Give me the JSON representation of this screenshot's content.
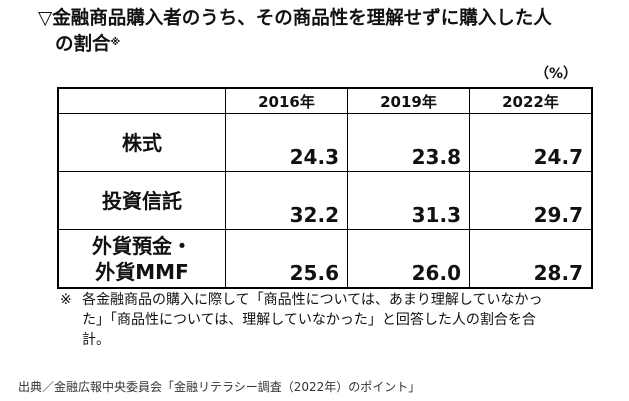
{
  "title": {
    "line1": "▽金融商品購入者のうち、その商品性を理解せずに購入した人",
    "line2": "の割合",
    "mark": "※"
  },
  "unit": "（%）",
  "table": {
    "headers": [
      "",
      "2016年",
      "2019年",
      "2022年"
    ],
    "rows": [
      {
        "label": "株式",
        "values": [
          "24.3",
          "23.8",
          "24.7"
        ]
      },
      {
        "label": "投資信託",
        "values": [
          "32.2",
          "31.3",
          "29.7"
        ]
      },
      {
        "label": "外貨預金・\n外貨MMF",
        "values": [
          "25.6",
          "26.0",
          "28.7"
        ]
      }
    ]
  },
  "note": {
    "mark": "※",
    "text": "各金融商品の購入に際して「商品性については、あまり理解していなかった」「商品性については、理解していなかった」と回答した人の割合を合計。"
  },
  "source": "出典／金融広報中央委員会「金融リテラシー調査（2022年）のポイント」"
}
